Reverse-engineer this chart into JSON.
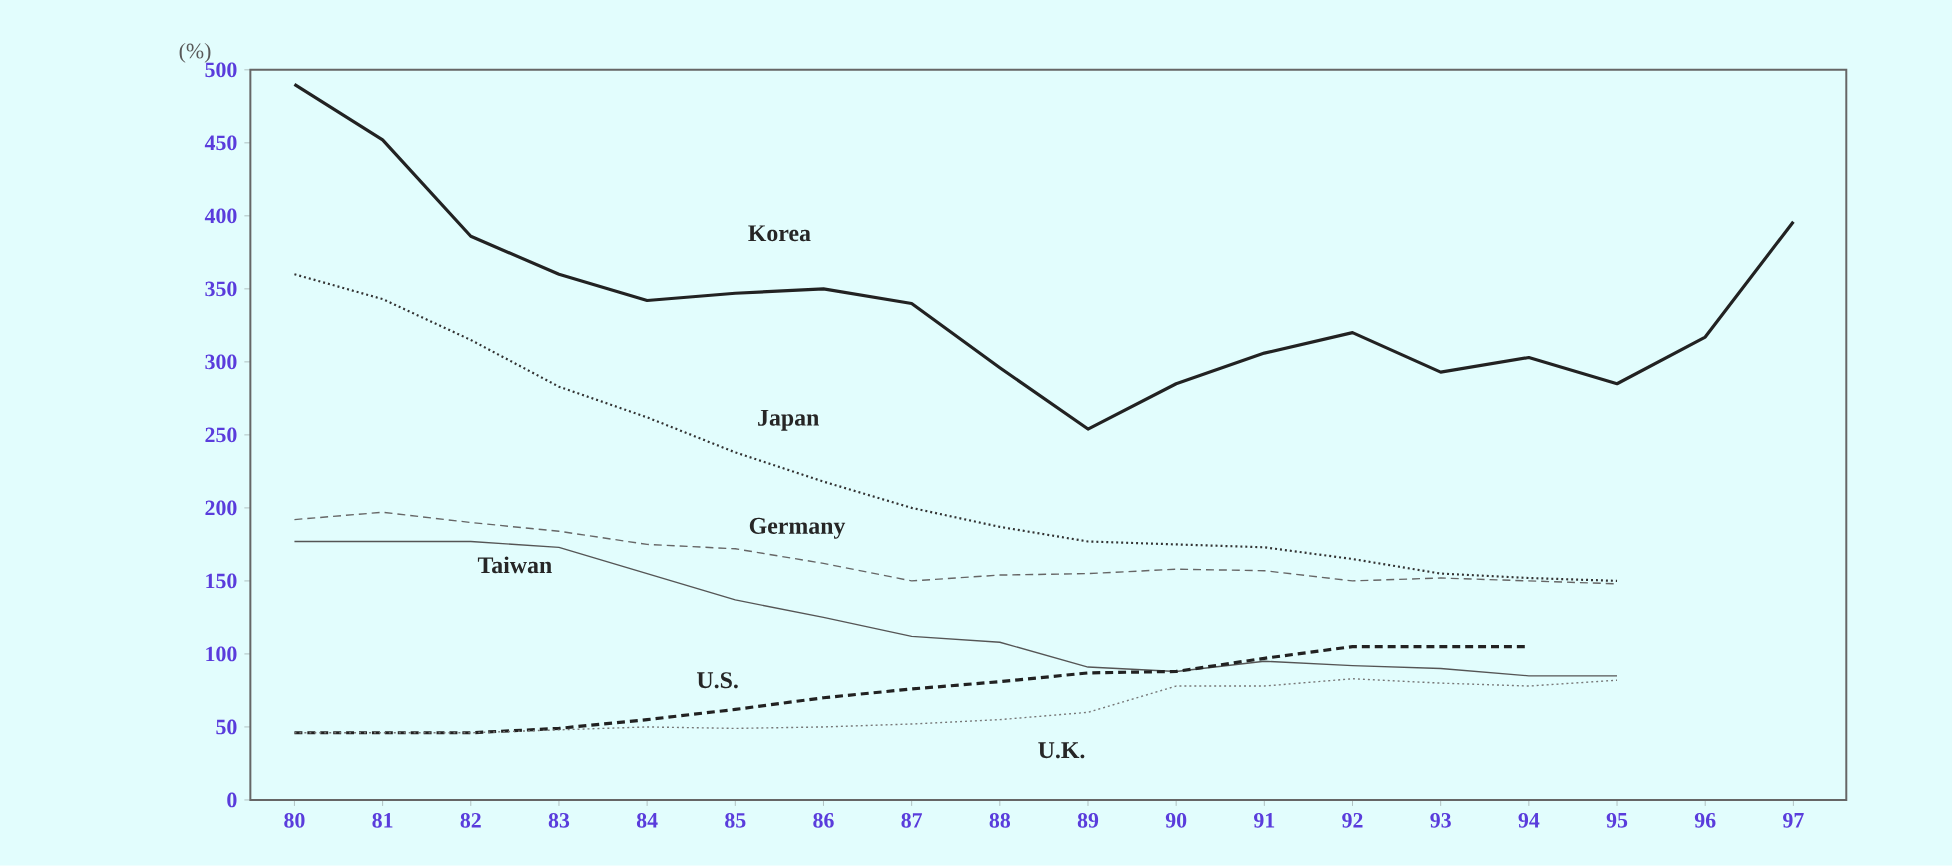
{
  "chart_data": {
    "type": "line",
    "ylabel": "(%)",
    "categories": [
      "80",
      "81",
      "82",
      "83",
      "84",
      "85",
      "86",
      "87",
      "88",
      "89",
      "90",
      "91",
      "92",
      "93",
      "94",
      "95",
      "96",
      "97"
    ],
    "ylim": [
      0,
      500
    ],
    "yticks": [
      0,
      50,
      100,
      150,
      200,
      250,
      300,
      350,
      400,
      450,
      500
    ],
    "grid": false,
    "marker": "none",
    "series": [
      {
        "name": "Korea",
        "color": "#222222",
        "line_style": "solid",
        "values": [
          490,
          452,
          386,
          360,
          342,
          347,
          350,
          340,
          296,
          254,
          285,
          306,
          320,
          293,
          303,
          285,
          317,
          396
        ]
      },
      {
        "name": "Japan",
        "color": "#333333",
        "line_style": "dotted",
        "values": [
          360,
          343,
          315,
          283,
          262,
          238,
          218,
          200,
          187,
          177,
          175,
          173,
          165,
          155,
          152,
          150,
          null,
          null
        ]
      },
      {
        "name": "Germany",
        "color": "#666666",
        "line_style": "dashed",
        "values": [
          192,
          197,
          190,
          184,
          175,
          172,
          162,
          150,
          154,
          155,
          158,
          157,
          150,
          152,
          150,
          148,
          null,
          null
        ]
      },
      {
        "name": "Taiwan",
        "color": "#555555",
        "line_style": "solid",
        "values": [
          177,
          177,
          177,
          173,
          155,
          137,
          125,
          112,
          108,
          91,
          88,
          95,
          92,
          90,
          85,
          85,
          null,
          null
        ]
      },
      {
        "name": "U.S.",
        "color": "#222222",
        "line_style": "dashed",
        "values": [
          46,
          46,
          46,
          49,
          55,
          62,
          70,
          76,
          81,
          87,
          88,
          97,
          105,
          105,
          105,
          null,
          null,
          null
        ]
      },
      {
        "name": "U.K.",
        "color": "#777777",
        "line_style": "dotted",
        "values": [
          46,
          46,
          46,
          48,
          50,
          49,
          50,
          52,
          55,
          60,
          78,
          78,
          83,
          80,
          78,
          82,
          null,
          null
        ]
      }
    ]
  }
}
